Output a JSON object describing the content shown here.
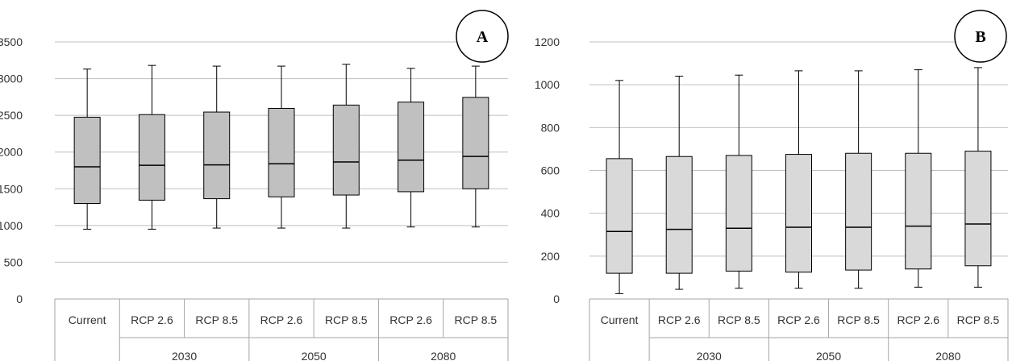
{
  "chart_data": [
    {
      "type": "boxplot",
      "panel_label": "A",
      "ylim": [
        0,
        3500
      ],
      "yticks": [
        0,
        500,
        1000,
        1500,
        2000,
        2500,
        3000,
        3500
      ],
      "categories": [
        "Current",
        "RCP 2.6",
        "RCP 8.5",
        "RCP 2.6",
        "RCP 8.5",
        "RCP 2.6",
        "RCP 8.5"
      ],
      "groups": [
        {
          "label": "",
          "span": 1
        },
        {
          "label": "2030",
          "span": 2
        },
        {
          "label": "2050",
          "span": 2
        },
        {
          "label": "2080",
          "span": 2
        }
      ],
      "box_color": "#c0c0c0",
      "boxes": [
        {
          "min": 950,
          "q1": 1300,
          "median": 1800,
          "q3": 2475,
          "max": 3130
        },
        {
          "min": 950,
          "q1": 1345,
          "median": 1820,
          "q3": 2510,
          "max": 3180
        },
        {
          "min": 965,
          "q1": 1365,
          "median": 1825,
          "q3": 2545,
          "max": 3170
        },
        {
          "min": 965,
          "q1": 1390,
          "median": 1840,
          "q3": 2595,
          "max": 3170
        },
        {
          "min": 965,
          "q1": 1415,
          "median": 1865,
          "q3": 2640,
          "max": 3195
        },
        {
          "min": 980,
          "q1": 1460,
          "median": 1890,
          "q3": 2680,
          "max": 3140
        },
        {
          "min": 980,
          "q1": 1500,
          "median": 1940,
          "q3": 2745,
          "max": 3170
        }
      ]
    },
    {
      "type": "boxplot",
      "panel_label": "B",
      "ylim": [
        0,
        1200
      ],
      "yticks": [
        0,
        200,
        400,
        600,
        800,
        1000,
        1200
      ],
      "categories": [
        "Current",
        "RCP 2.6",
        "RCP 8.5",
        "RCP 2.6",
        "RCP 8.5",
        "RCP 2.6",
        "RCP 8.5"
      ],
      "groups": [
        {
          "label": "",
          "span": 1
        },
        {
          "label": "2030",
          "span": 2
        },
        {
          "label": "2050",
          "span": 2
        },
        {
          "label": "2080",
          "span": 2
        }
      ],
      "box_color": "#d9d9d9",
      "boxes": [
        {
          "min": 25,
          "q1": 120,
          "median": 315,
          "q3": 655,
          "max": 1020
        },
        {
          "min": 45,
          "q1": 120,
          "median": 325,
          "q3": 665,
          "max": 1040
        },
        {
          "min": 50,
          "q1": 130,
          "median": 330,
          "q3": 670,
          "max": 1045
        },
        {
          "min": 50,
          "q1": 125,
          "median": 335,
          "q3": 675,
          "max": 1065
        },
        {
          "min": 50,
          "q1": 135,
          "median": 335,
          "q3": 680,
          "max": 1065
        },
        {
          "min": 55,
          "q1": 140,
          "median": 340,
          "q3": 680,
          "max": 1070
        },
        {
          "min": 55,
          "q1": 155,
          "median": 350,
          "q3": 690,
          "max": 1080
        }
      ]
    }
  ]
}
